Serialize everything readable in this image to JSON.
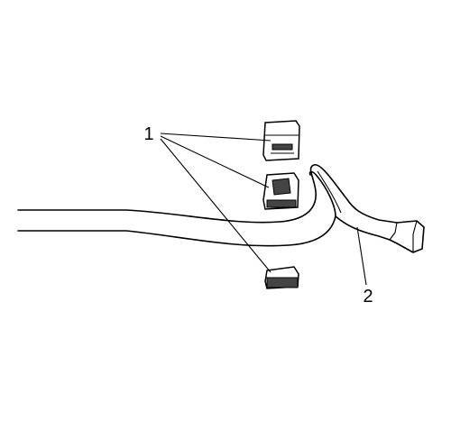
{
  "callouts": [
    {
      "label": "1"
    },
    {
      "label": "2"
    }
  ]
}
